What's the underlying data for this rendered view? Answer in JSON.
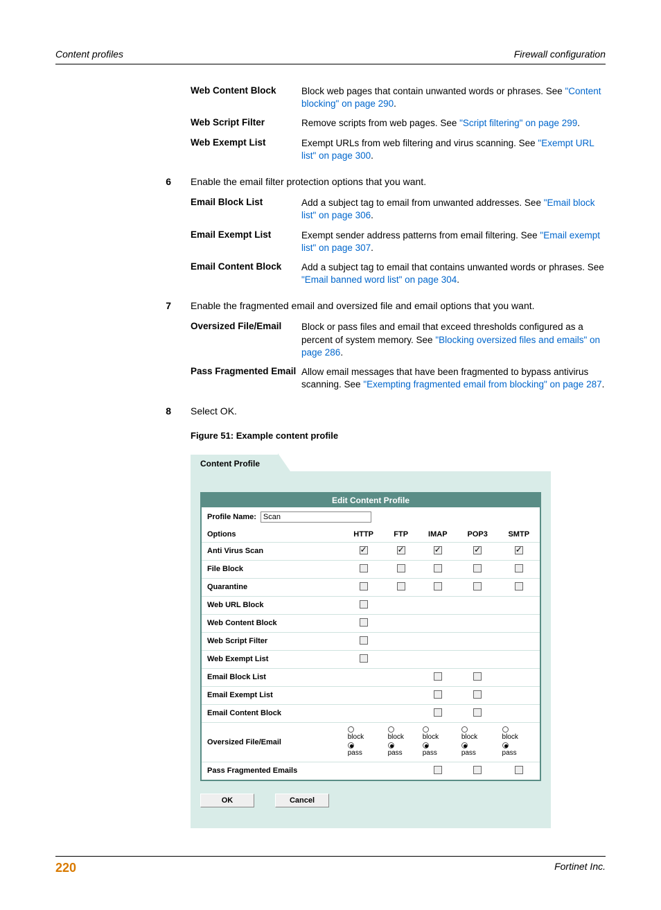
{
  "header": {
    "left": "Content profiles",
    "right": "Firewall configuration"
  },
  "topDefs": [
    {
      "term": "Web Content Block",
      "pre": "Block web pages that contain unwanted words or phrases. See ",
      "link": "\"Content blocking\" on page 290",
      "post": "."
    },
    {
      "term": "Web Script Filter",
      "pre": "Remove scripts from web pages. See ",
      "link": "\"Script filtering\" on page 299",
      "post": "."
    },
    {
      "term": "Web Exempt List",
      "pre": "Exempt URLs from web filtering and virus scanning. See ",
      "link": "\"Exempt URL list\" on page 300",
      "post": "."
    }
  ],
  "step6": {
    "num": "6",
    "text": "Enable the email filter protection options that you want."
  },
  "defs6": [
    {
      "term": "Email Block List",
      "pre": "Add a subject tag to email from unwanted addresses. See ",
      "link": "\"Email block list\" on page 306",
      "post": "."
    },
    {
      "term": "Email Exempt List",
      "pre": "Exempt sender address patterns from email filtering. See ",
      "link": "\"Email exempt list\" on page 307",
      "post": "."
    },
    {
      "term": "Email Content Block",
      "pre": "Add a subject tag to email that contains unwanted words or phrases. See ",
      "link": "\"Email banned word list\" on page 304",
      "post": "."
    }
  ],
  "step7": {
    "num": "7",
    "text": "Enable the fragmented email and oversized file and email options that you want."
  },
  "defs7": [
    {
      "term": "Oversized File/Email",
      "pre": "Block or pass files and email that exceed thresholds configured as a percent of system memory. See ",
      "link": "\"Blocking oversized files and emails\" on page 286",
      "post": "."
    },
    {
      "term": "Pass Fragmented Email",
      "pre": "Allow email messages that have been fragmented to bypass antivirus scanning. See ",
      "link": "\"Exempting fragmented email from blocking\" on page 287",
      "post": "."
    }
  ],
  "step8": {
    "num": "8",
    "text": "Select OK."
  },
  "figCaption": "Figure 51: Example content profile",
  "ui": {
    "tabLabel": "Content Profile",
    "titleBar": "Edit Content Profile",
    "profileNameLabel": "Profile Name:",
    "profileNameValue": "Scan",
    "colHeaders": [
      "Options",
      "HTTP",
      "FTP",
      "IMAP",
      "POP3",
      "SMTP"
    ],
    "rows": [
      {
        "label": "Anti Virus Scan",
        "cells": [
          "c1",
          "c1",
          "c1",
          "c1",
          "c1"
        ]
      },
      {
        "label": "File Block",
        "cells": [
          "c0",
          "c0",
          "c0",
          "c0",
          "c0"
        ]
      },
      {
        "label": "Quarantine",
        "cells": [
          "c0",
          "c0",
          "c0",
          "c0",
          "c0"
        ]
      },
      {
        "label": "Web URL Block",
        "cells": [
          "c0",
          "",
          "",
          "",
          ""
        ]
      },
      {
        "label": "Web Content Block",
        "cells": [
          "c0",
          "",
          "",
          "",
          ""
        ]
      },
      {
        "label": "Web Script Filter",
        "cells": [
          "c0",
          "",
          "",
          "",
          ""
        ]
      },
      {
        "label": "Web Exempt List",
        "cells": [
          "c0",
          "",
          "",
          "",
          ""
        ]
      },
      {
        "label": "Email Block List",
        "cells": [
          "",
          "",
          "c0",
          "c0",
          ""
        ]
      },
      {
        "label": "Email Exempt List",
        "cells": [
          "",
          "",
          "c0",
          "c0",
          ""
        ]
      },
      {
        "label": "Email Content Block",
        "cells": [
          "",
          "",
          "c0",
          "c0",
          ""
        ]
      },
      {
        "label": "Oversized File/Email",
        "cells": [
          "bp",
          "bp",
          "bp",
          "bp",
          "bp"
        ]
      },
      {
        "label": "Pass Fragmented Emails",
        "cells": [
          "",
          "",
          "c0",
          "c0",
          "c0"
        ]
      }
    ],
    "blockLabel": "block",
    "passLabel": "pass",
    "okLabel": "OK",
    "cancelLabel": "Cancel"
  },
  "footer": {
    "pageNum": "220",
    "company": "Fortinet Inc."
  },
  "colors": {
    "panel_bg": "#d9ece8",
    "bar_bg": "#5a8d86",
    "link": "#0066cc",
    "page_num": "#d97a00"
  }
}
